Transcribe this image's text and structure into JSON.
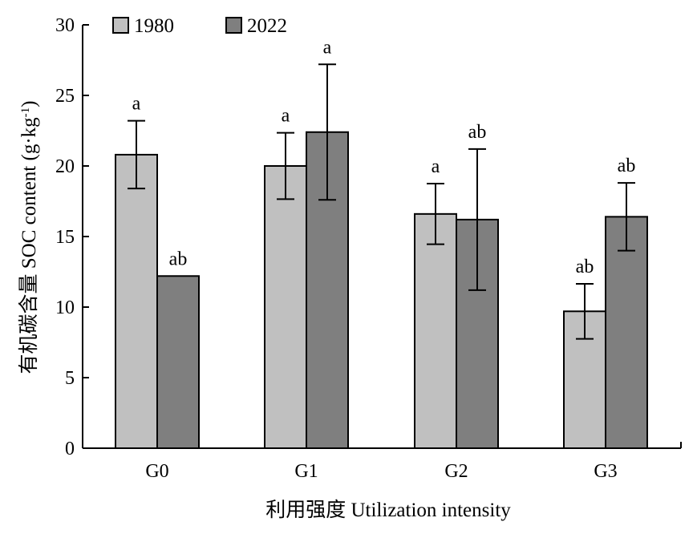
{
  "chart_data": {
    "type": "bar",
    "categories": [
      "G0",
      "G1",
      "G2",
      "G3"
    ],
    "series": [
      {
        "name": "1980",
        "color": "#c0c0c0",
        "values": [
          20.8,
          20.0,
          16.6,
          9.7
        ],
        "error": [
          2.4,
          2.35,
          2.15,
          1.95
        ],
        "significance": [
          "a",
          "a",
          "a",
          "ab"
        ]
      },
      {
        "name": "2022",
        "color": "#7f7f7f",
        "values": [
          12.2,
          22.4,
          16.2,
          16.4
        ],
        "error": [
          0,
          4.8,
          5.0,
          2.4
        ],
        "significance": [
          "ab",
          "a",
          "ab",
          "ab"
        ]
      }
    ],
    "xlabel": "利用强度 Utilization intensity",
    "ylabel_main": "有机碳含量 SOC content (g·kg",
    "ylabel_sup": "-1",
    "ylabel_end": ")",
    "ylim": [
      0,
      30
    ],
    "yticks": [
      0,
      5,
      10,
      15,
      20,
      25,
      30
    ],
    "grid": false,
    "legend_position": "top-left"
  }
}
